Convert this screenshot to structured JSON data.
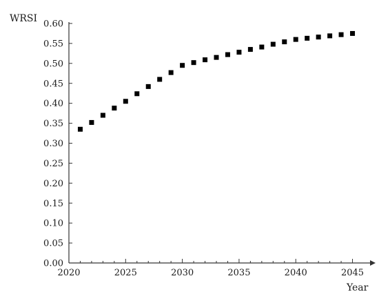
{
  "chart_data": {
    "type": "scatter",
    "title": "",
    "ylabel": "WRSI",
    "xlabel": "Year",
    "xlim": [
      2020,
      2046
    ],
    "ylim": [
      0,
      0.6
    ],
    "grid": false,
    "marker": "square",
    "marker_color": "#000000",
    "x_ticks": [
      2020,
      2025,
      2030,
      2035,
      2040,
      2045
    ],
    "y_ticks": [
      0.0,
      0.05,
      0.1,
      0.15,
      0.2,
      0.25,
      0.3,
      0.35,
      0.4,
      0.45,
      0.5,
      0.55,
      0.6
    ],
    "x_tick_labels": [
      "2020",
      "2025",
      "2030",
      "2035",
      "2040",
      "2045"
    ],
    "y_tick_labels": [
      "0.00",
      "0.05",
      "0.10",
      "0.15",
      "0.20",
      "0.25",
      "0.30",
      "0.35",
      "0.40",
      "0.45",
      "0.50",
      "0.55",
      "0.60"
    ],
    "x": [
      2021,
      2022,
      2023,
      2024,
      2025,
      2026,
      2027,
      2028,
      2029,
      2030,
      2031,
      2032,
      2033,
      2034,
      2035,
      2036,
      2037,
      2038,
      2039,
      2040,
      2041,
      2042,
      2043,
      2044,
      2045
    ],
    "y": [
      0.335,
      0.352,
      0.37,
      0.388,
      0.405,
      0.424,
      0.442,
      0.46,
      0.477,
      0.495,
      0.502,
      0.509,
      0.515,
      0.522,
      0.528,
      0.535,
      0.541,
      0.548,
      0.554,
      0.56,
      0.563,
      0.566,
      0.569,
      0.572,
      0.575
    ]
  }
}
